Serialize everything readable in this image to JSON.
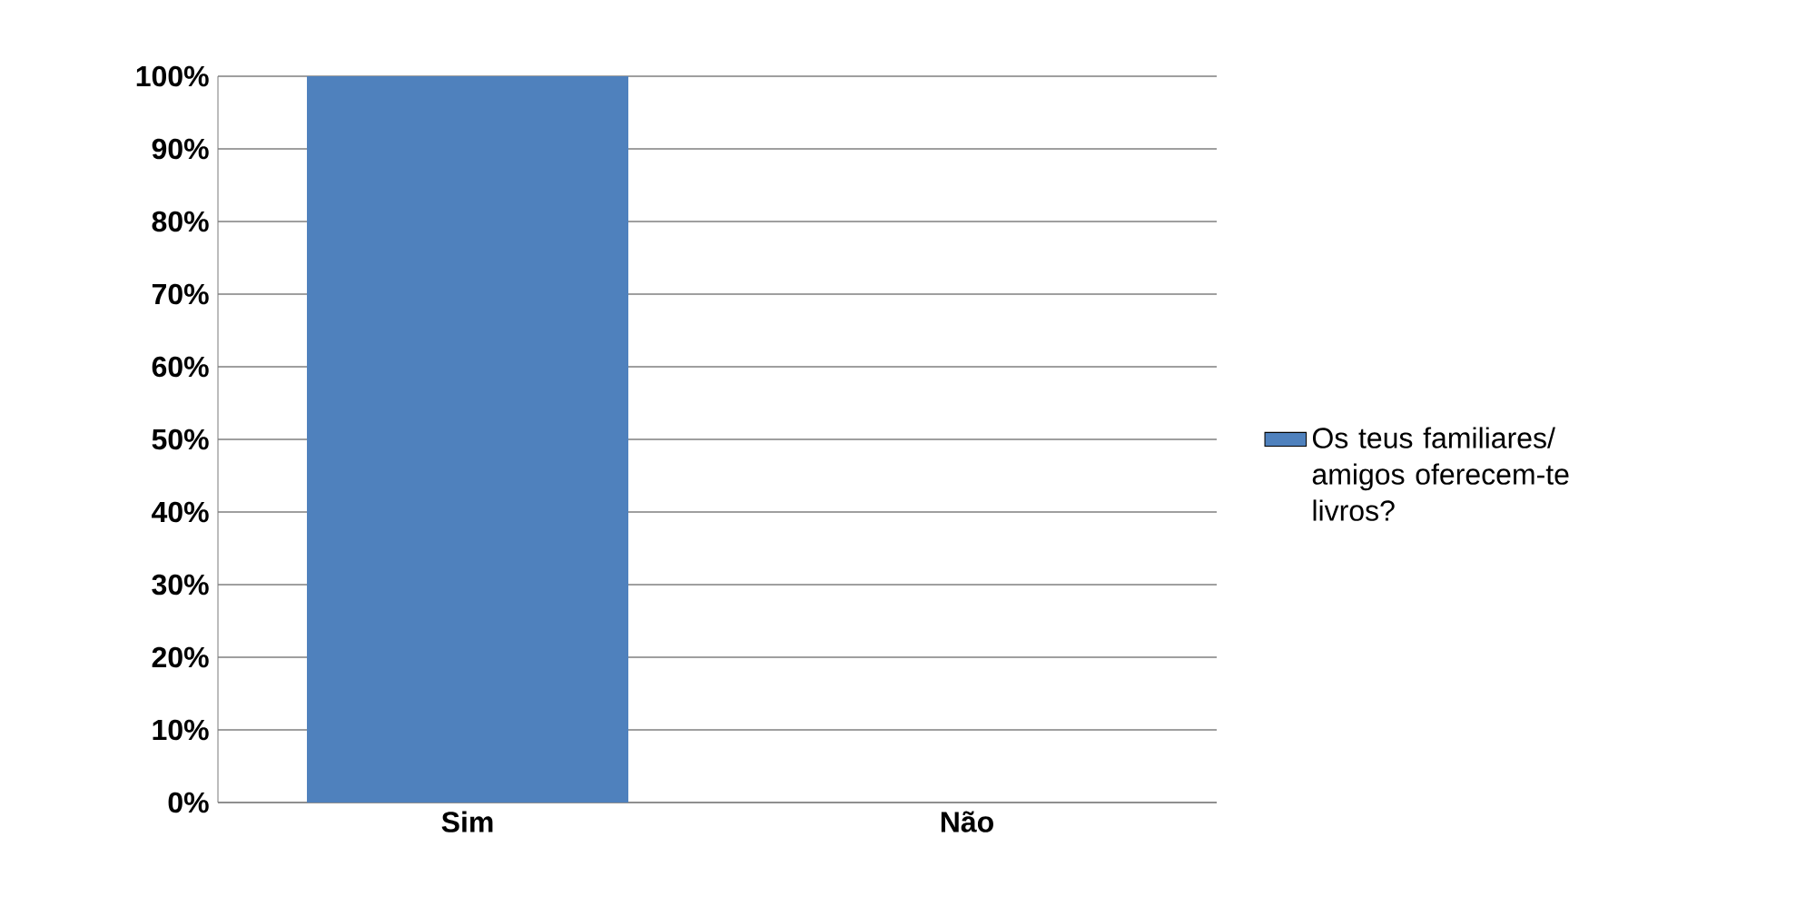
{
  "chart_data": {
    "type": "bar",
    "categories": [
      "Sim",
      "Não"
    ],
    "series": [
      {
        "name": "Os teus familiares/ amigos oferecem-te livros?",
        "color": "#4f81bd",
        "values": [
          100,
          0
        ]
      }
    ],
    "ylim": [
      0,
      100
    ],
    "yticks": [
      {
        "value": 0,
        "label": "0%"
      },
      {
        "value": 10,
        "label": "10%"
      },
      {
        "value": 20,
        "label": "20%"
      },
      {
        "value": 30,
        "label": "30%"
      },
      {
        "value": 40,
        "label": "40%"
      },
      {
        "value": 50,
        "label": "50%"
      },
      {
        "value": 60,
        "label": "60%"
      },
      {
        "value": 70,
        "label": "70%"
      },
      {
        "value": 80,
        "label": "80%"
      },
      {
        "value": 90,
        "label": "90%"
      },
      {
        "value": 100,
        "label": "100%"
      }
    ],
    "grid": "y",
    "legend": "right"
  }
}
